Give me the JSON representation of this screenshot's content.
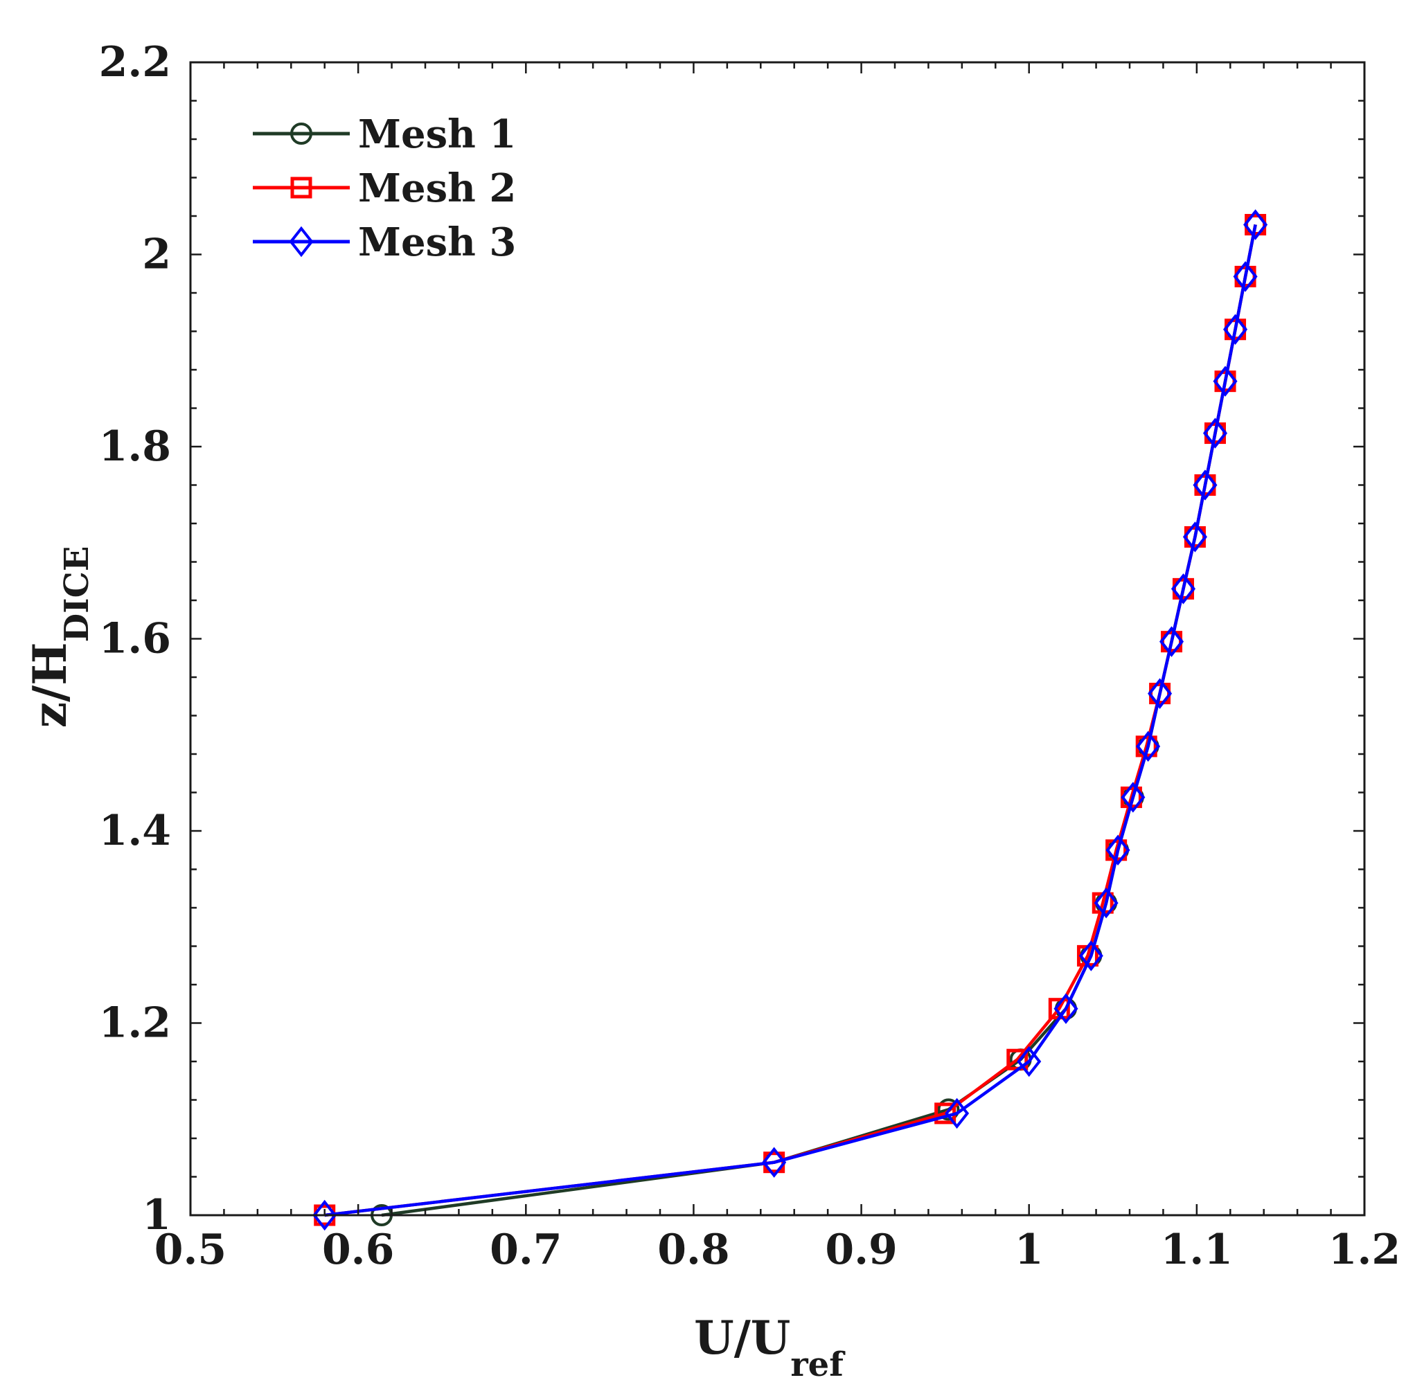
{
  "chart_data": {
    "type": "line",
    "xlabel": {
      "main": "U/U",
      "sub": "ref"
    },
    "ylabel": {
      "main": "z/H",
      "sub": "DICE"
    },
    "xlim": [
      0.5,
      1.2
    ],
    "ylim": [
      1,
      2.2
    ],
    "xticks": [
      "0.5",
      "0.6",
      "0.7",
      "0.8",
      "0.9",
      "1",
      "1.1",
      "1.2"
    ],
    "yticks": [
      "1",
      "1.2",
      "1.4",
      "1.6",
      "1.8",
      "2",
      "2.2"
    ],
    "grid": false,
    "legend_position": "top-left",
    "series": [
      {
        "name": "Mesh 1",
        "color": "#1f3b26",
        "marker": "circle",
        "x": [
          0.614,
          0.848,
          0.952,
          0.995,
          1.022,
          1.037,
          1.046,
          1.053,
          1.062,
          1.071,
          1.078,
          1.085,
          1.092,
          1.099,
          1.105,
          1.111,
          1.117,
          1.123,
          1.129,
          1.135
        ],
        "y": [
          1.0,
          1.055,
          1.11,
          1.162,
          1.215,
          1.27,
          1.325,
          1.38,
          1.435,
          1.488,
          1.543,
          1.597,
          1.652,
          1.706,
          1.76,
          1.814,
          1.868,
          1.922,
          1.977,
          2.031
        ]
      },
      {
        "name": "Mesh 2",
        "color": "#ff0000",
        "marker": "square",
        "x": [
          0.58,
          0.848,
          0.95,
          0.993,
          1.018,
          1.035,
          1.044,
          1.052,
          1.061,
          1.07,
          1.078,
          1.085,
          1.092,
          1.099,
          1.105,
          1.111,
          1.117,
          1.123,
          1.129,
          1.135
        ],
        "y": [
          1.0,
          1.055,
          1.106,
          1.162,
          1.215,
          1.27,
          1.325,
          1.38,
          1.435,
          1.488,
          1.543,
          1.597,
          1.652,
          1.706,
          1.76,
          1.814,
          1.868,
          1.922,
          1.977,
          2.031
        ]
      },
      {
        "name": "Mesh 3",
        "color": "#0000ff",
        "marker": "diamond",
        "x": [
          0.58,
          0.848,
          0.957,
          1.0,
          1.022,
          1.037,
          1.046,
          1.053,
          1.062,
          1.071,
          1.078,
          1.085,
          1.092,
          1.099,
          1.105,
          1.111,
          1.117,
          1.123,
          1.129,
          1.135
        ],
        "y": [
          1.0,
          1.055,
          1.106,
          1.16,
          1.215,
          1.27,
          1.325,
          1.38,
          1.435,
          1.488,
          1.543,
          1.597,
          1.652,
          1.706,
          1.76,
          1.814,
          1.868,
          1.922,
          1.977,
          2.031
        ]
      }
    ]
  }
}
